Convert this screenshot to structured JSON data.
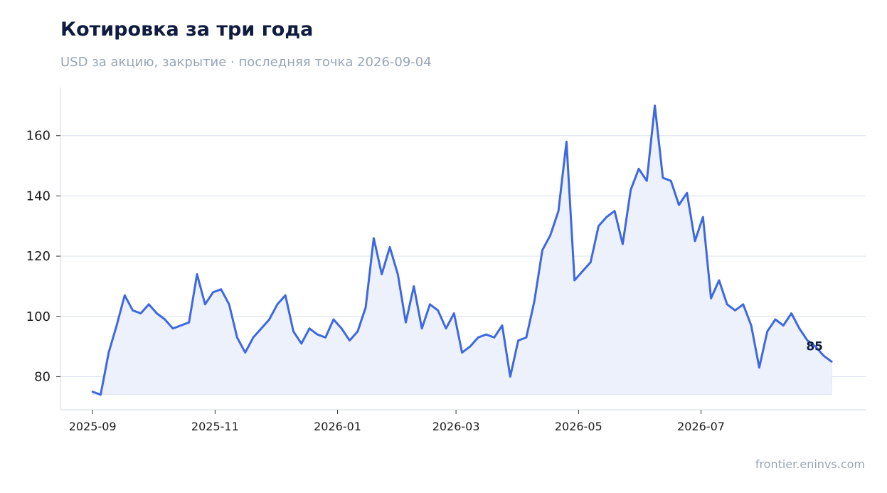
{
  "header": {
    "title": "Котировка за три года",
    "subtitle": "USD за акцию, закрытие · последняя точка 2026-09-04"
  },
  "footer": {
    "source": "frontier.eninvs.com"
  },
  "colors": {
    "line": "#3d68e0",
    "area": "#edf1fc",
    "grid": "#dfe4f3",
    "axis": "#e2e6ee"
  },
  "chart_data": {
    "type": "area",
    "title": "Котировка за три года",
    "subtitle": "USD за акцию, закрытие · последняя точка 2026-09-04",
    "xlabel": "",
    "ylabel": "",
    "xlim": [
      "2025-08-16",
      "2026-09-21"
    ],
    "ylim": [
      69,
      176
    ],
    "y_ticks": [
      80,
      100,
      120,
      140,
      160
    ],
    "x_ticks": [
      "2025-09",
      "2025-11",
      "2026-01",
      "2026-03",
      "2026-05",
      "2026-07"
    ],
    "grid": "horizontal",
    "last_value_label": "85",
    "series": [
      {
        "x": [
          "2025-09-01",
          "2025-09-05",
          "2025-09-09",
          "2025-09-13",
          "2025-09-17",
          "2025-09-21",
          "2025-09-25",
          "2025-09-29",
          "2025-10-03",
          "2025-10-07",
          "2025-10-11",
          "2025-10-15",
          "2025-10-19",
          "2025-10-23",
          "2025-10-27",
          "2025-10-31",
          "2025-11-04",
          "2025-11-08",
          "2025-11-12",
          "2025-11-16",
          "2025-11-20",
          "2025-11-24",
          "2025-11-28",
          "2025-12-02",
          "2025-12-06",
          "2025-12-10",
          "2025-12-14",
          "2025-12-18",
          "2025-12-22",
          "2025-12-26",
          "2025-12-30",
          "2026-01-03",
          "2026-01-07",
          "2026-01-11",
          "2026-01-15",
          "2026-01-19",
          "2026-01-23",
          "2026-01-27",
          "2026-01-31",
          "2026-02-04",
          "2026-02-08",
          "2026-02-12",
          "2026-02-16",
          "2026-02-20",
          "2026-02-24",
          "2026-02-28",
          "2026-03-04",
          "2026-03-08",
          "2026-03-12",
          "2026-03-16",
          "2026-03-20",
          "2026-03-24",
          "2026-03-28",
          "2026-04-01",
          "2026-04-05",
          "2026-04-09",
          "2026-04-13",
          "2026-04-17",
          "2026-04-21",
          "2026-04-25",
          "2026-04-29",
          "2026-05-03",
          "2026-05-07",
          "2026-05-11",
          "2026-05-15",
          "2026-05-19",
          "2026-05-23",
          "2026-05-27",
          "2026-05-31",
          "2026-06-04",
          "2026-06-08",
          "2026-06-12",
          "2026-06-16",
          "2026-06-20",
          "2026-06-24",
          "2026-06-28",
          "2026-07-02",
          "2026-07-06",
          "2026-07-10",
          "2026-07-14",
          "2026-07-18",
          "2026-07-22",
          "2026-07-26",
          "2026-07-30",
          "2026-08-03",
          "2026-08-07",
          "2026-08-11",
          "2026-08-15",
          "2026-08-19",
          "2026-08-23",
          "2026-08-27",
          "2026-08-31",
          "2026-09-04"
        ],
        "y": [
          75,
          74,
          88,
          97,
          107,
          102,
          101,
          104,
          101,
          99,
          96,
          97,
          98,
          114,
          104,
          108,
          109,
          104,
          93,
          88,
          93,
          96,
          99,
          104,
          107,
          95,
          91,
          96,
          94,
          93,
          99,
          96,
          92,
          95,
          103,
          126,
          114,
          123,
          114,
          98,
          110,
          96,
          104,
          102,
          96,
          101,
          88,
          90,
          93,
          94,
          93,
          97,
          80,
          92,
          93,
          105,
          122,
          127,
          135,
          158,
          112,
          115,
          118,
          130,
          133,
          135,
          124,
          142,
          149,
          145,
          170,
          146,
          145,
          137,
          141,
          125,
          133,
          106,
          112,
          104,
          102,
          104,
          97,
          83,
          95,
          99,
          97,
          101,
          96,
          92,
          90,
          87,
          85
        ]
      }
    ]
  }
}
